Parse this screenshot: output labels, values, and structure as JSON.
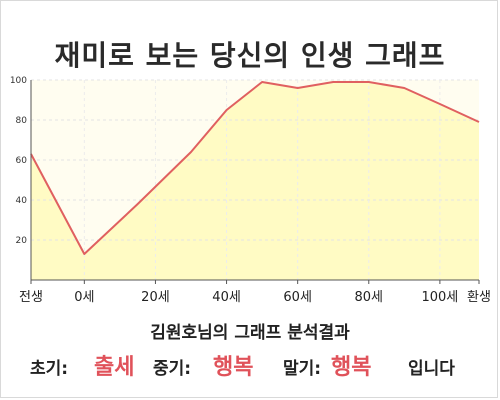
{
  "title": "재미로 보는 당신의 인생 그래프",
  "summary": "김원호님의 그래프 분석결과",
  "phases": {
    "early_label": "초기:",
    "early_value": "출세",
    "mid_label": "중기:",
    "mid_value": "행복",
    "late_label": "말기:",
    "late_value": "행복",
    "ending": "입니다"
  },
  "colors": {
    "line": "#e06060",
    "fill": "#fffbc4",
    "accent_text": "#e0525a"
  },
  "chart_data": {
    "type": "area",
    "x_tick_labels": [
      "전생",
      "0세",
      "20세",
      "40세",
      "60세",
      "80세",
      "100세",
      "환생"
    ],
    "x": [
      -15,
      0,
      15,
      30,
      40,
      50,
      60,
      70,
      80,
      90,
      100,
      111
    ],
    "values": [
      63,
      13,
      38,
      64,
      85,
      99,
      96,
      99,
      99,
      96,
      88,
      79
    ],
    "y_ticks": [
      20,
      40,
      60,
      80,
      100
    ],
    "ylim": [
      0,
      100
    ],
    "grid": true,
    "title": "재미로 보는 당신의 인생 그래프",
    "xlabel": "",
    "ylabel": ""
  }
}
